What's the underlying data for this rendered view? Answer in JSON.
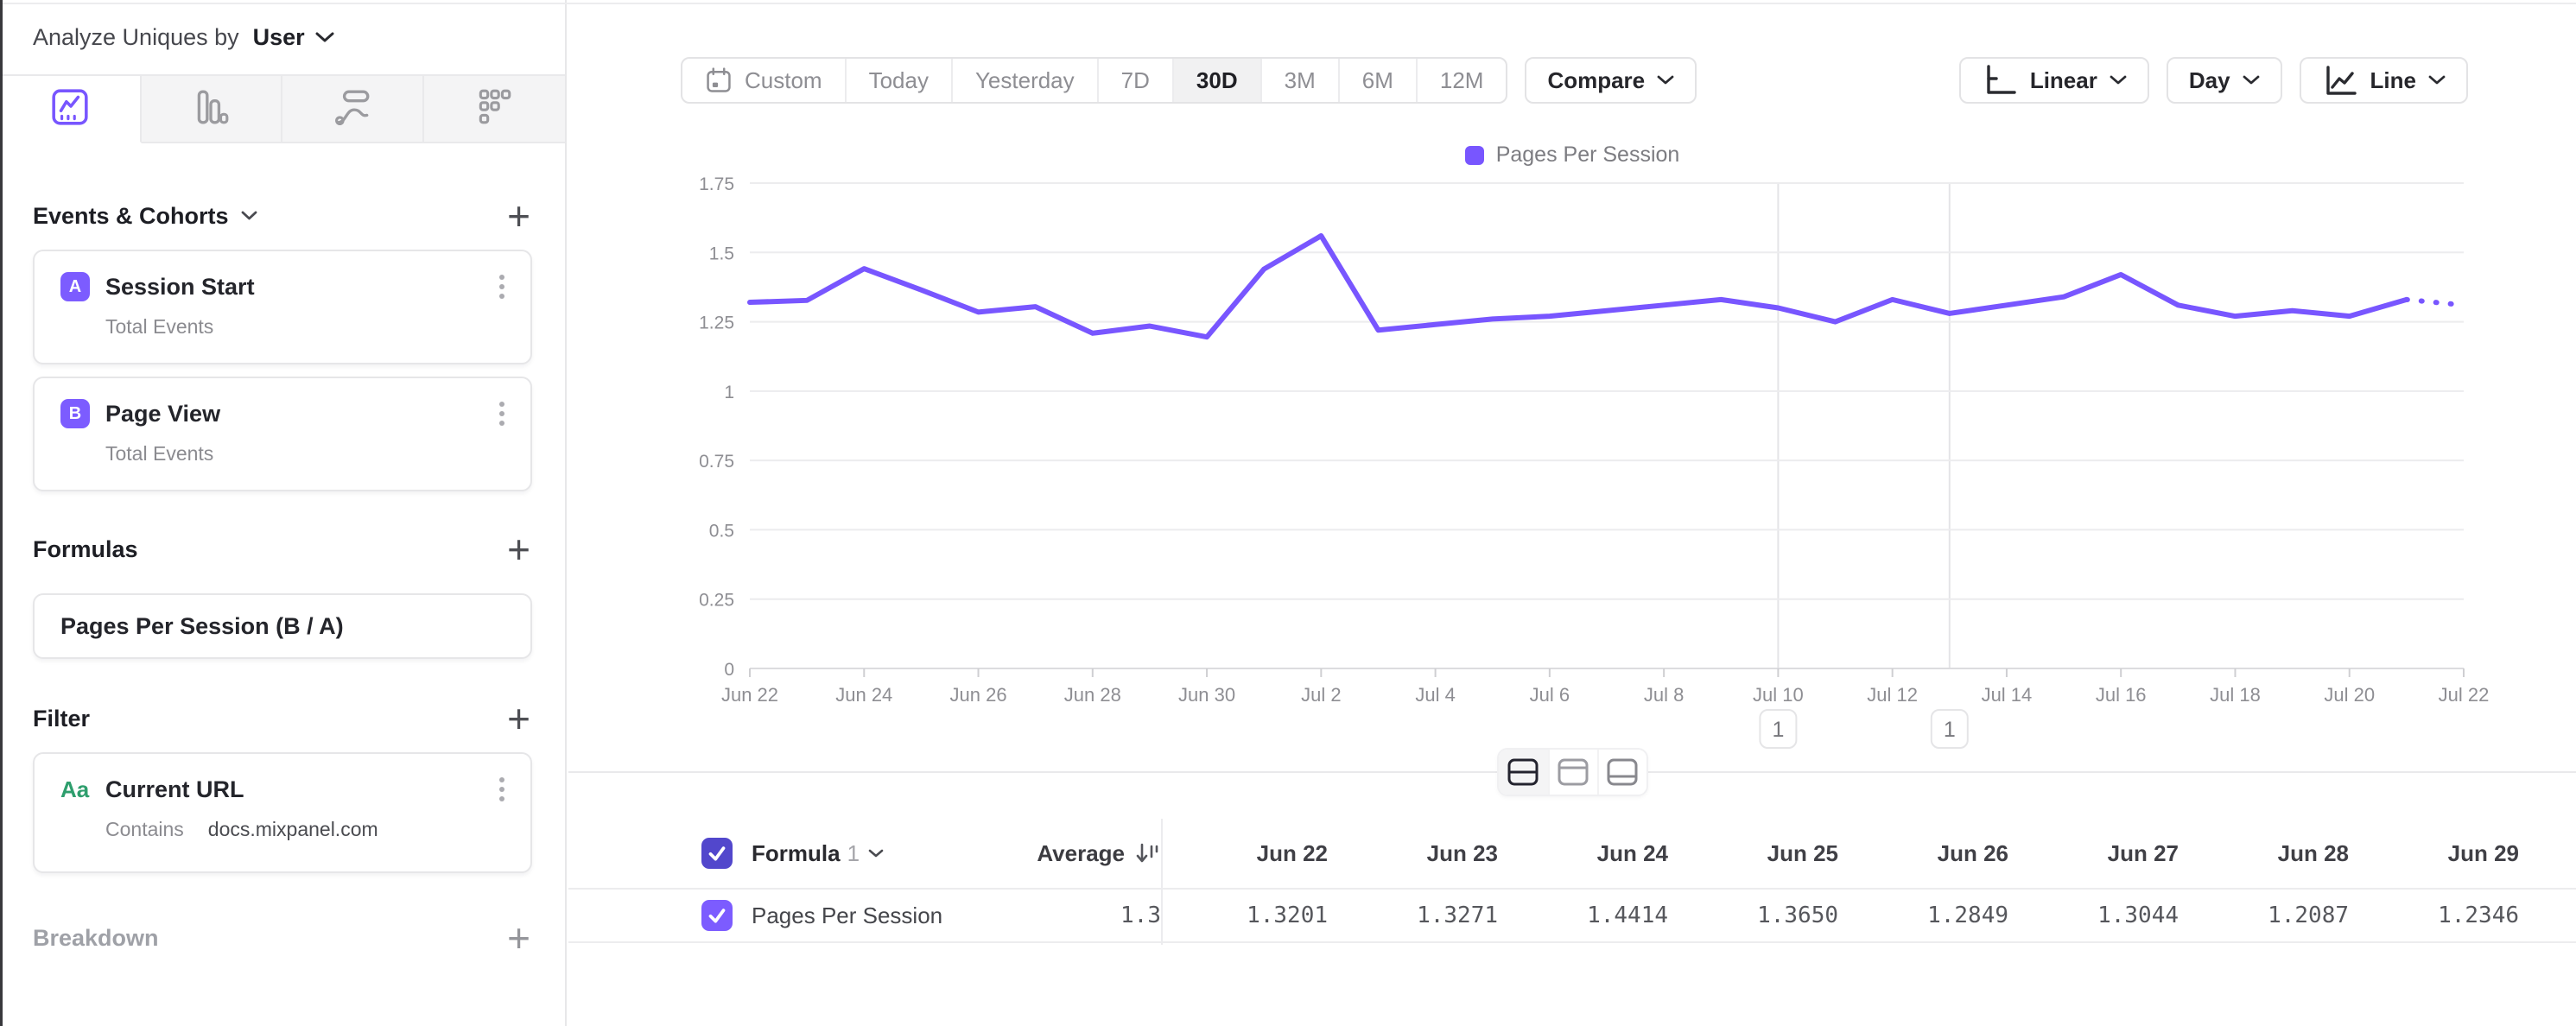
{
  "colors": {
    "accent_purple": "#7856ff",
    "badge_purple": "#7c5cff",
    "header_checkbox": "#5247cc",
    "row_checkbox": "#7c5cff",
    "filter_icon_green": "#2e9e6d"
  },
  "sidebar": {
    "header": {
      "prefix": "Analyze Uniques by",
      "selected": "User"
    },
    "tabs": [
      {
        "id": "insights-line-tab",
        "icon": "line-chart-icon",
        "active": true
      },
      {
        "id": "bar-chart-tab",
        "icon": "bar-chart-icon",
        "active": false
      },
      {
        "id": "flows-tab",
        "icon": "flows-icon",
        "active": false
      },
      {
        "id": "retention-tab",
        "icon": "retention-grid-icon",
        "active": false
      }
    ],
    "sections": {
      "events": {
        "title": "Events & Cohorts",
        "items": [
          {
            "badge": "A",
            "title": "Session Start",
            "subtitle": "Total Events"
          },
          {
            "badge": "B",
            "title": "Page View",
            "subtitle": "Total Events"
          }
        ]
      },
      "formulas": {
        "title": "Formulas",
        "items": [
          {
            "title": "Pages Per Session (B / A)"
          }
        ]
      },
      "filter": {
        "title": "Filter",
        "items": [
          {
            "icon_label": "Aa",
            "title": "Current URL",
            "operator": "Contains",
            "value": "docs.mixpanel.com"
          }
        ]
      },
      "breakdown": {
        "title": "Breakdown"
      }
    }
  },
  "toolbar": {
    "ranges": [
      "Custom",
      "Today",
      "Yesterday",
      "7D",
      "30D",
      "3M",
      "6M",
      "12M"
    ],
    "active_range": "30D",
    "compare_label": "Compare",
    "scale_label": "Linear",
    "granularity_label": "Day",
    "chart_type_label": "Line"
  },
  "chart_data": {
    "type": "line",
    "title": "",
    "xlabel": "",
    "ylabel": "",
    "grid": true,
    "legend_position": "top-center",
    "ylim": [
      0,
      1.75
    ],
    "yticks": [
      0,
      0.25,
      0.5,
      0.75,
      1,
      1.25,
      1.5,
      1.75
    ],
    "xtick_every": 2,
    "x": [
      "Jun 22",
      "Jun 23",
      "Jun 24",
      "Jun 25",
      "Jun 26",
      "Jun 27",
      "Jun 28",
      "Jun 29",
      "Jun 30",
      "Jul 1",
      "Jul 2",
      "Jul 3",
      "Jul 4",
      "Jul 5",
      "Jul 6",
      "Jul 7",
      "Jul 8",
      "Jul 9",
      "Jul 10",
      "Jul 11",
      "Jul 12",
      "Jul 13",
      "Jul 14",
      "Jul 15",
      "Jul 16",
      "Jul 17",
      "Jul 18",
      "Jul 19",
      "Jul 20",
      "Jul 21",
      "Jul 22"
    ],
    "series": [
      {
        "name": "Pages Per Session",
        "color": "#7856ff",
        "values": [
          1.3201,
          1.3271,
          1.4414,
          1.365,
          1.2849,
          1.3044,
          1.2087,
          1.2346,
          1.195,
          1.44,
          1.56,
          1.22,
          1.24,
          1.26,
          1.27,
          1.29,
          1.31,
          1.33,
          1.3,
          1.25,
          1.33,
          1.28,
          1.31,
          1.34,
          1.42,
          1.31,
          1.27,
          1.29,
          1.27,
          1.33,
          1.31
        ]
      }
    ],
    "dotted_from_index": 29,
    "annotations": [
      {
        "index": 18,
        "label": "1"
      },
      {
        "index": 21,
        "label": "1"
      }
    ]
  },
  "table": {
    "header": {
      "name_label": "Formula",
      "name_number": "1",
      "average_label": "Average"
    },
    "columns": [
      "Jun 22",
      "Jun 23",
      "Jun 24",
      "Jun 25",
      "Jun 26",
      "Jun 27",
      "Jun 28",
      "Jun 29"
    ],
    "rows": [
      {
        "name": "Pages Per Session",
        "checked": true,
        "average": "1.3",
        "values": [
          "1.3201",
          "1.3271",
          "1.4414",
          "1.3650",
          "1.2849",
          "1.3044",
          "1.2087",
          "1.2346"
        ]
      }
    ]
  }
}
